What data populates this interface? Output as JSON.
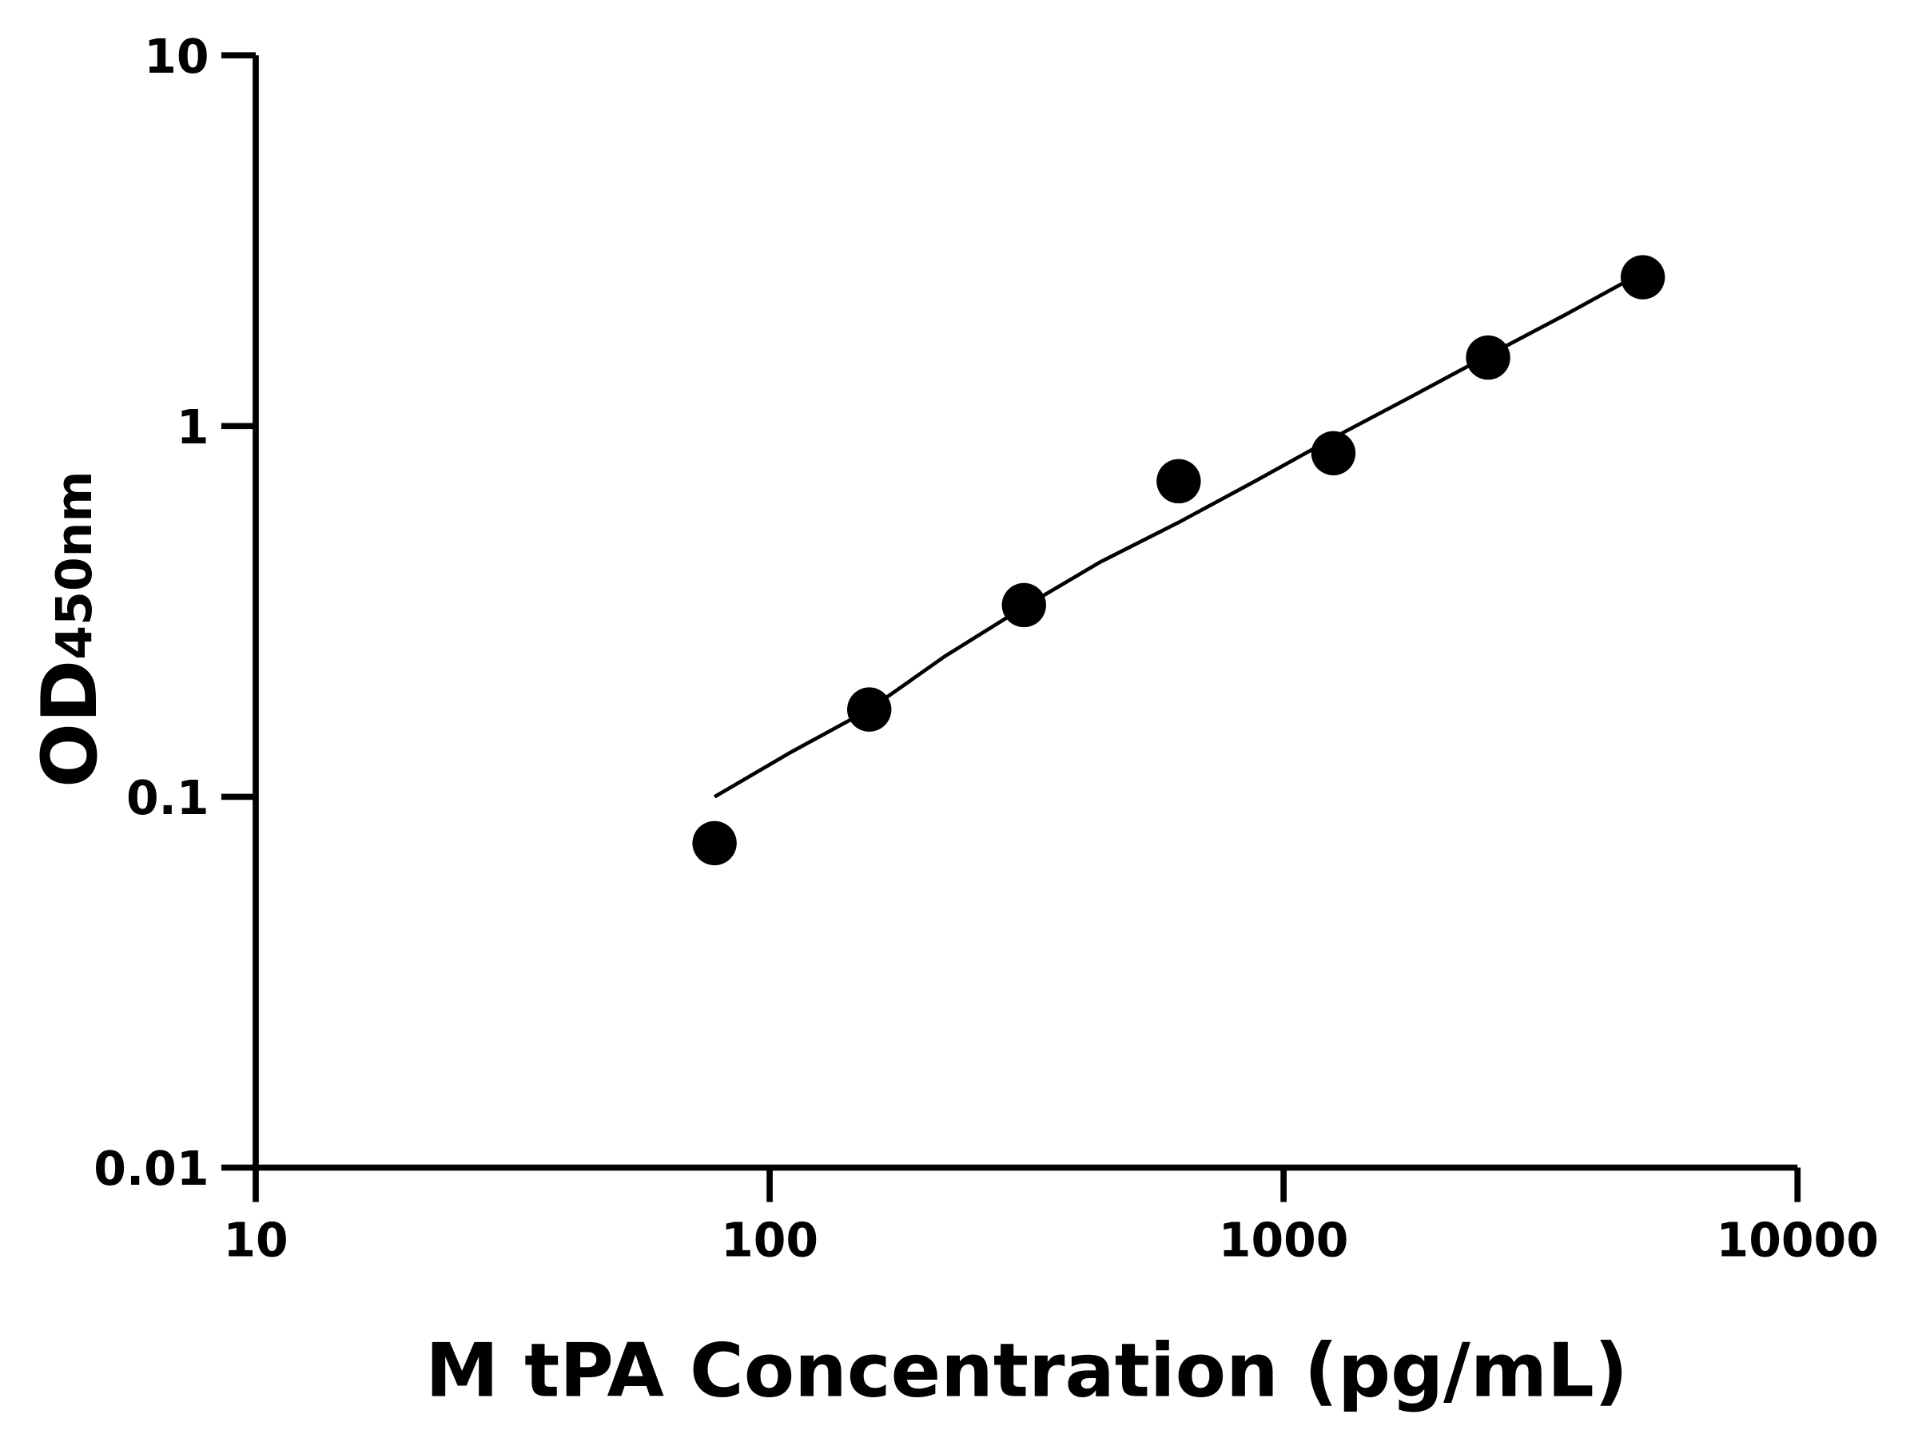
{
  "chart_data": {
    "type": "scatter",
    "title": "",
    "xlabel": "M tPA Concentration (pg/mL)",
    "ylabel": {
      "main": "OD",
      "subscript": "450nm"
    },
    "x_scale": "log",
    "y_scale": "log",
    "xlim": [
      10,
      10000
    ],
    "ylim": [
      0.01,
      10
    ],
    "x_ticks": [
      "10",
      "100",
      "1000",
      "10000"
    ],
    "y_ticks": [
      "0.01",
      "0.1",
      "1",
      "10"
    ],
    "grid": false,
    "colors": {
      "points": "#000000",
      "curve": "#000000",
      "axes": "#000000"
    },
    "points": {
      "x": [
        78.125,
        156.25,
        312.5,
        625,
        1250,
        2500,
        5000
      ],
      "y": [
        0.075,
        0.172,
        0.329,
        0.71,
        0.845,
        1.53,
        2.52
      ]
    },
    "fit_curve": {
      "x": [
        78.125,
        110,
        156.25,
        220,
        312.5,
        440,
        625,
        880,
        1250,
        1770,
        2500,
        3540,
        5000
      ],
      "y": [
        0.1,
        0.132,
        0.172,
        0.24,
        0.325,
        0.43,
        0.55,
        0.71,
        0.93,
        1.2,
        1.55,
        2.0,
        2.6
      ]
    }
  }
}
